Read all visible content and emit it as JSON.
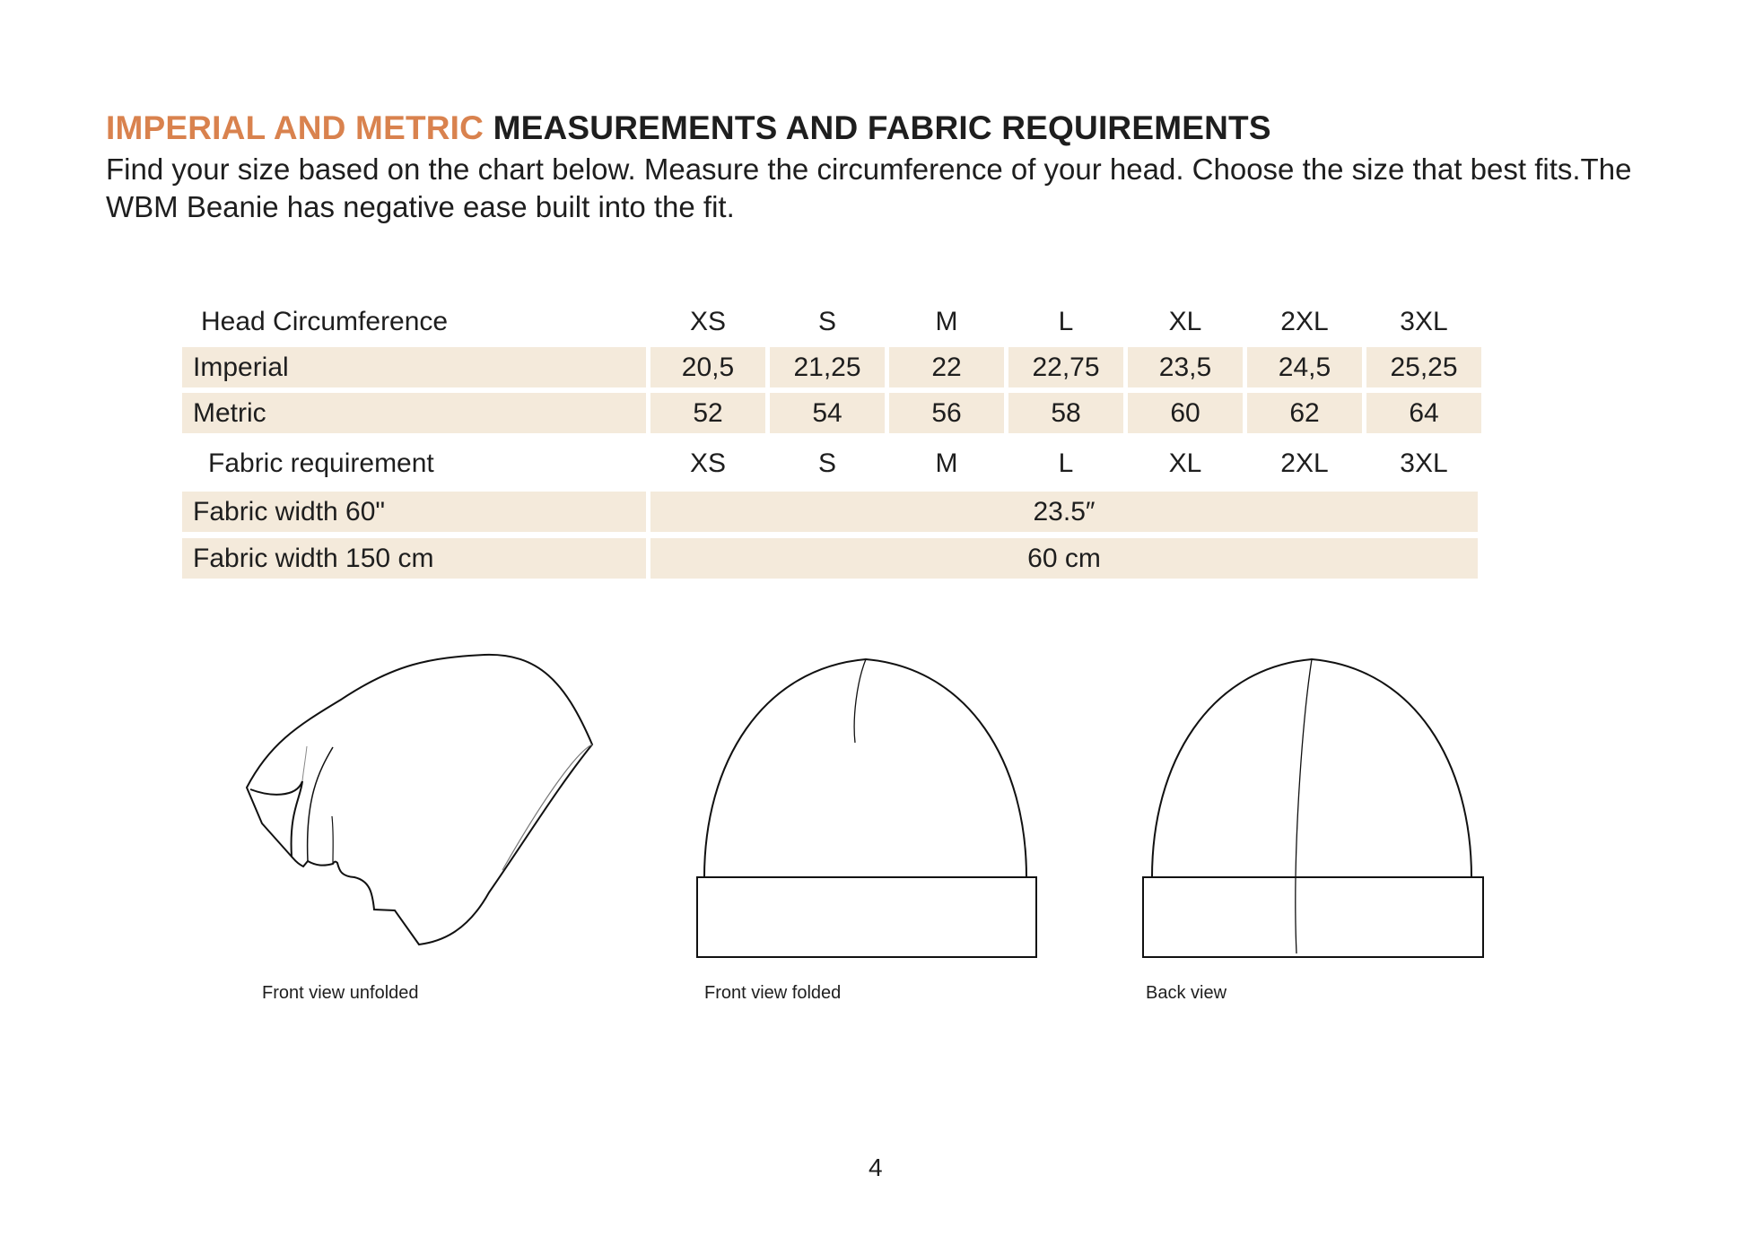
{
  "title": {
    "accent": "IMPERIAL AND METRIC",
    "rest": "MEASUREMENTS AND FABRIC REQUIREMENTS"
  },
  "intro": "Find your size based on the chart below. Measure the circumference of your head. Choose the size that best fits.The WBM Beanie has negative ease built into the fit.",
  "table": {
    "head_label": "Head Circumference",
    "sizes": [
      "XS",
      "S",
      "M",
      "L",
      "XL",
      "2XL",
      "3XL"
    ],
    "imperial": {
      "label": "Imperial",
      "values": [
        "20,5",
        "21,25",
        "22",
        "22,75",
        "23,5",
        "24,5",
        "25,25"
      ]
    },
    "metric": {
      "label": "Metric",
      "values": [
        "52",
        "54",
        "56",
        "58",
        "60",
        "62",
        "64"
      ]
    },
    "fabric_label": "Fabric requirement",
    "fabric_60": {
      "label": "Fabric width 60\"",
      "value": "23.5″"
    },
    "fabric_150": {
      "label": "Fabric width 150 cm",
      "value": "60 cm"
    }
  },
  "captions": [
    "Front view unfolded",
    "Front view folded",
    "Back view"
  ],
  "page_number": "4",
  "colors": {
    "accent": "#d9824e",
    "row_fill": "#f4eadb"
  }
}
